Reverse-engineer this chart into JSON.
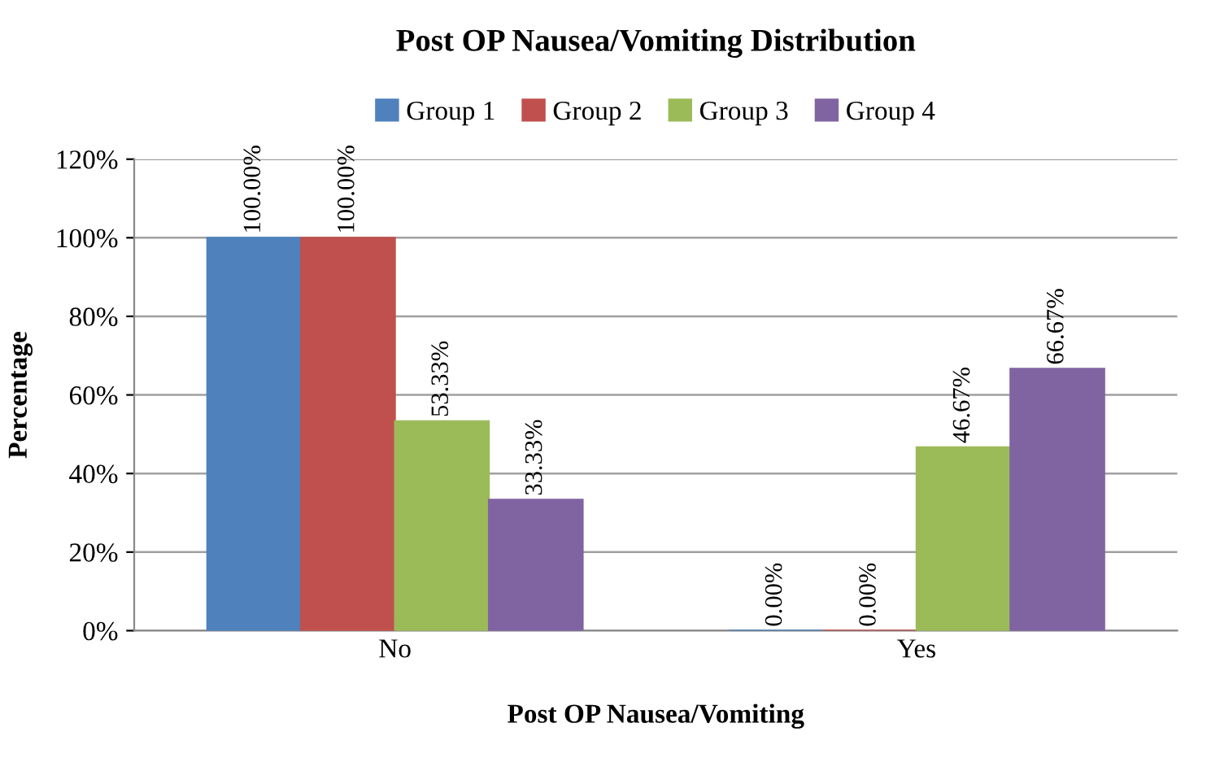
{
  "chart_data": {
    "type": "bar",
    "title": "Post OP Nausea/Vomiting Distribution",
    "xlabel": "Post OP Nausea/Vomiting",
    "ylabel": "Percentage",
    "categories": [
      "No",
      "Yes"
    ],
    "series": [
      {
        "name": "Group 1",
        "color": "#4f81bd",
        "values": [
          100.0,
          0.0
        ],
        "value_labels": [
          "100.00%",
          "0.00%"
        ]
      },
      {
        "name": "Group 2",
        "color": "#c0504d",
        "values": [
          100.0,
          0.0
        ],
        "value_labels": [
          "100.00%",
          "0.00%"
        ]
      },
      {
        "name": "Group 3",
        "color": "#9bbb59",
        "values": [
          53.33,
          46.67
        ],
        "value_labels": [
          "53.33%",
          "46.67%"
        ]
      },
      {
        "name": "Group 4",
        "color": "#8064a2",
        "values": [
          33.33,
          66.67
        ],
        "value_labels": [
          "33.33%",
          "66.67%"
        ]
      }
    ],
    "ylim": [
      0,
      120
    ],
    "yticks": [
      {
        "value": 0,
        "label": "0%"
      },
      {
        "value": 20,
        "label": "20%"
      },
      {
        "value": 40,
        "label": "40%"
      },
      {
        "value": 60,
        "label": "60%"
      },
      {
        "value": 80,
        "label": "80%"
      },
      {
        "value": 100,
        "label": "100%"
      },
      {
        "value": 120,
        "label": "120%"
      }
    ],
    "grid": "y",
    "legend": "top"
  }
}
